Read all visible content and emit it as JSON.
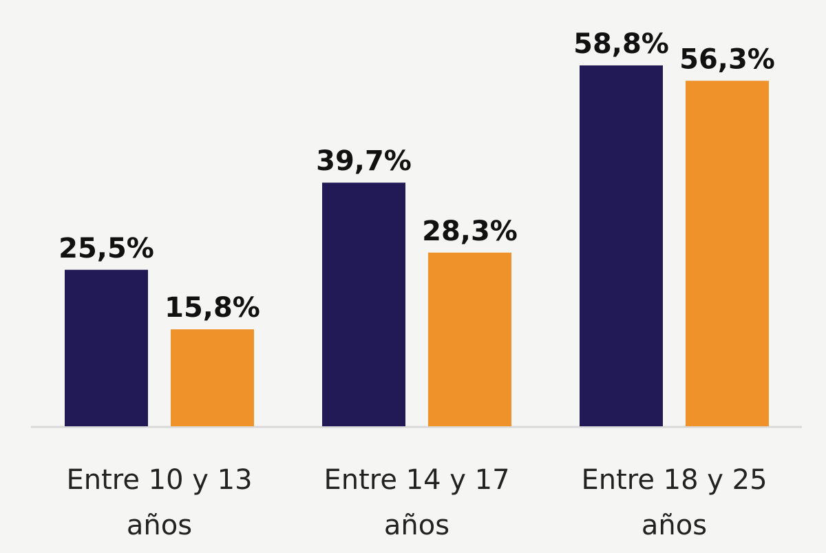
{
  "chart_data": {
    "type": "bar",
    "title": "",
    "xlabel": "",
    "ylabel": "",
    "ylim": [
      0,
      62
    ],
    "grid": false,
    "legend": "none",
    "categories": [
      [
        "Entre 10 y 13",
        "años"
      ],
      [
        "Entre 14 y 17",
        "años"
      ],
      [
        "Entre 18 y 25",
        "años"
      ]
    ],
    "series": [
      {
        "color": "#211a57",
        "values": [
          25.5,
          39.7,
          58.8
        ],
        "labels": [
          "25,5%",
          "39,7%",
          "58,8%"
        ]
      },
      {
        "color": "#ef9229",
        "values": [
          15.8,
          28.3,
          56.3
        ],
        "labels": [
          "15,8%",
          "28,3%",
          "56,3%"
        ]
      }
    ]
  },
  "colors": {
    "background": "#f5f5f3",
    "baseline": "#d9d9d9",
    "text": "#111111"
  }
}
